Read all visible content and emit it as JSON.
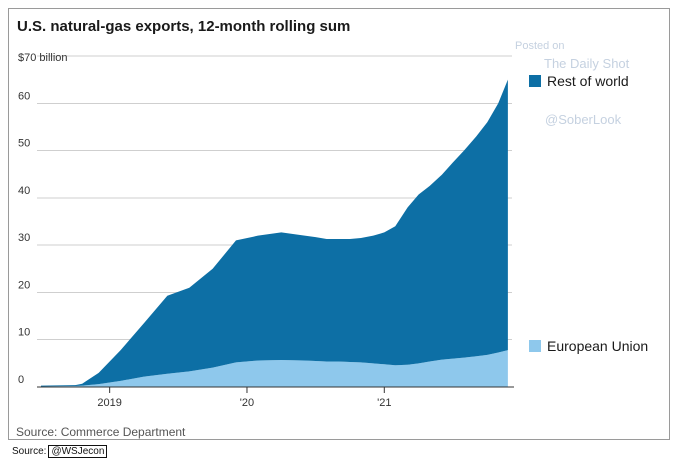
{
  "chart_data": {
    "type": "area",
    "stacked": true,
    "title": "U.S. natural-gas exports, 12-month rolling sum",
    "ylabel_top": "$70 billion",
    "ylim": [
      0,
      70
    ],
    "yticks": [
      0,
      10,
      20,
      30,
      40,
      50,
      60
    ],
    "ytick_labels": [
      "0",
      "10",
      "20",
      "30",
      "40",
      "50",
      "60"
    ],
    "grid": true,
    "xlim": [
      2018.5,
      2021.93
    ],
    "xticks": [
      2019,
      2020,
      2021
    ],
    "xtick_labels": [
      "2019",
      "'20",
      "'21"
    ],
    "x": [
      2018.5,
      2018.75,
      2018.8,
      2018.92,
      2019.08,
      2019.25,
      2019.42,
      2019.58,
      2019.75,
      2019.92,
      2020.08,
      2020.25,
      2020.42,
      2020.5,
      2020.58,
      2020.67,
      2020.75,
      2020.83,
      2020.92,
      2021.0,
      2021.08,
      2021.17,
      2021.25,
      2021.33,
      2021.42,
      2021.5,
      2021.58,
      2021.67,
      2021.75,
      2021.83,
      2021.9
    ],
    "series": [
      {
        "name": "European Union",
        "color": "#8ec8ec",
        "values": [
          0.1,
          0.2,
          0.3,
          0.6,
          1.3,
          2.2,
          2.8,
          3.3,
          4.1,
          5.2,
          5.6,
          5.7,
          5.6,
          5.5,
          5.4,
          5.4,
          5.3,
          5.2,
          5.0,
          4.8,
          4.6,
          4.7,
          5.0,
          5.4,
          5.8,
          6.0,
          6.2,
          6.5,
          6.8,
          7.3,
          7.8
        ]
      },
      {
        "name": "Rest of world",
        "color": "#0d6fa5",
        "values": [
          0.2,
          0.2,
          0.4,
          2.4,
          6.5,
          11.3,
          16.5,
          17.7,
          20.9,
          25.8,
          26.4,
          27.0,
          26.4,
          26.2,
          25.9,
          25.9,
          26.0,
          26.3,
          27.0,
          27.9,
          29.4,
          33.3,
          35.7,
          37.1,
          39.1,
          41.5,
          43.8,
          46.5,
          49.2,
          52.7,
          57.2
        ]
      }
    ],
    "legend_position": "right",
    "source": "Source: Commerce Department"
  },
  "watermark": {
    "posted_on": "Posted on",
    "name": "The Daily Shot",
    "handle": "@SoberLook"
  },
  "footer": {
    "source_prefix": "Source:",
    "source_handle": "@WSJecon"
  }
}
